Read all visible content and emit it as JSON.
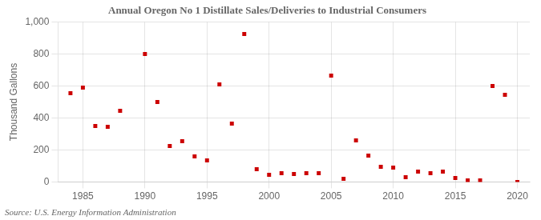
{
  "chart_data": {
    "type": "scatter",
    "title": "Annual Oregon No 1 Distillate Sales/Deliveries to Industrial Consumers",
    "ylabel": "Thousand Gallons",
    "annotation": "Source: U.S. Energy Information Administration",
    "x": [
      1984,
      1985,
      1986,
      1987,
      1988,
      1990,
      1991,
      1992,
      1993,
      1994,
      1995,
      1996,
      1997,
      1998,
      1999,
      2000,
      2001,
      2002,
      2003,
      2004,
      2005,
      2006,
      2007,
      2008,
      2009,
      2010,
      2011,
      2012,
      2013,
      2014,
      2015,
      2016,
      2017,
      2018,
      2019,
      2020
    ],
    "values": [
      555,
      590,
      350,
      345,
      445,
      800,
      500,
      225,
      255,
      160,
      135,
      610,
      365,
      925,
      80,
      45,
      55,
      50,
      55,
      55,
      665,
      20,
      260,
      165,
      95,
      90,
      30,
      65,
      55,
      65,
      25,
      10,
      10,
      600,
      545,
      0
    ],
    "color": "#cc0000",
    "marker": "square",
    "xlim": [
      1983,
      2021
    ],
    "xticks": [
      1985,
      1990,
      1995,
      2000,
      2005,
      2010,
      2015,
      2020
    ],
    "ylim": [
      0,
      1000
    ],
    "yticks": [
      0,
      200,
      400,
      600,
      800,
      {
        "value": 1000,
        "label": "1,000"
      }
    ],
    "grid": true
  }
}
